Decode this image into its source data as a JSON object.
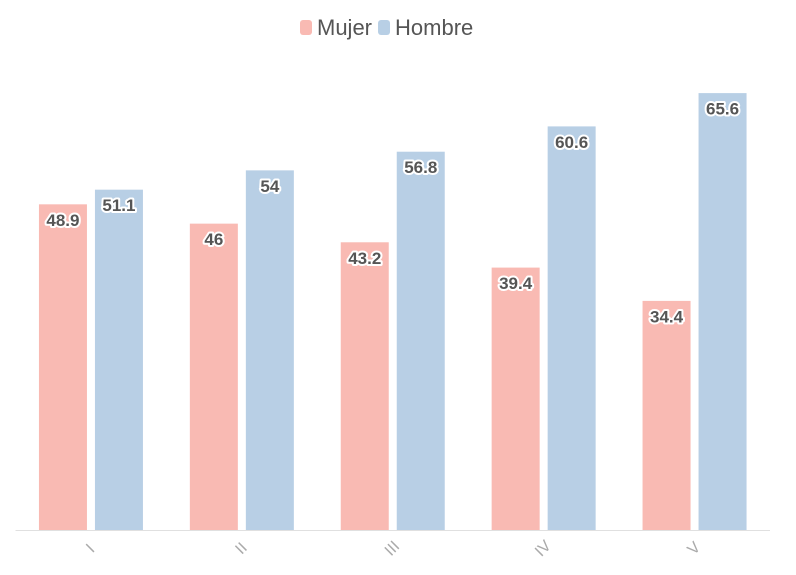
{
  "chart_data": {
    "type": "bar",
    "categories": [
      "I",
      "II",
      "III",
      "IV",
      "V"
    ],
    "series": [
      {
        "name": "Mujer",
        "color": "#f9bab3",
        "values": [
          48.9,
          46,
          43.2,
          39.4,
          34.4
        ]
      },
      {
        "name": "Hombre",
        "color": "#b8cfe5",
        "values": [
          51.1,
          54,
          56.8,
          60.6,
          65.6
        ]
      }
    ]
  }
}
